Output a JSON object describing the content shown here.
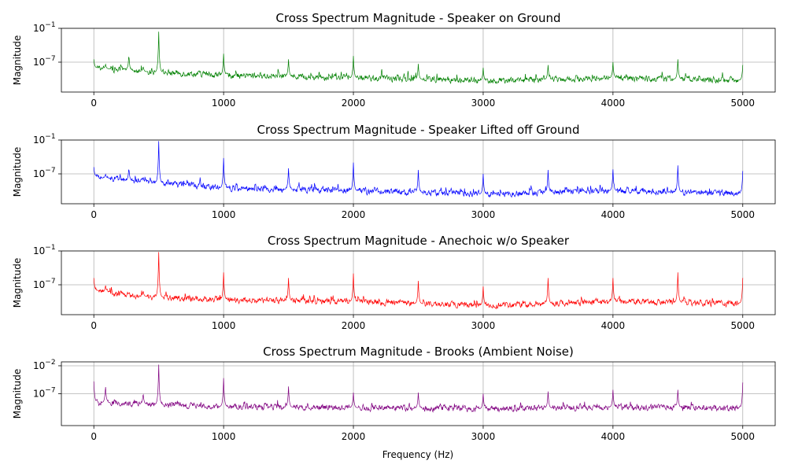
{
  "xlabel": "Frequency (Hz)",
  "xticks": [
    "0",
    "1000",
    "2000",
    "3000",
    "4000",
    "5000"
  ],
  "chart_data": [
    {
      "type": "line",
      "title": "Cross Spectrum Magnitude - Speaker on Ground",
      "ylabel": "Magnitude",
      "yscale": "log",
      "xlim": [
        -250,
        5250
      ],
      "ylim_log10": [
        -12.3,
        -1
      ],
      "yticks": [
        {
          "pre": "10",
          "exp": "−1",
          "value": -1
        },
        {
          "pre": "10",
          "exp": "−7",
          "value": -7
        }
      ],
      "grid": true,
      "color": "#008000",
      "noise_floor_log10": [
        [
          0,
          -8.0
        ],
        [
          300,
          -8.6
        ],
        [
          1000,
          -9.3
        ],
        [
          2000,
          -9.8
        ],
        [
          3000,
          -10.3
        ],
        [
          4000,
          -9.8
        ],
        [
          5000,
          -10.2
        ]
      ],
      "peaks": [
        {
          "x": 0,
          "y_log10": -6.5
        },
        {
          "x": 90,
          "y_log10": -7.3
        },
        {
          "x": 270,
          "y_log10": -5.5
        },
        {
          "x": 380,
          "y_log10": -7.7
        },
        {
          "x": 500,
          "y_log10": -1.6
        },
        {
          "x": 1000,
          "y_log10": -5.5
        },
        {
          "x": 1500,
          "y_log10": -6.5
        },
        {
          "x": 2000,
          "y_log10": -5.9
        },
        {
          "x": 2500,
          "y_log10": -7.3
        },
        {
          "x": 3000,
          "y_log10": -8.0
        },
        {
          "x": 3500,
          "y_log10": -7.5
        },
        {
          "x": 4000,
          "y_log10": -7.0
        },
        {
          "x": 4500,
          "y_log10": -6.5
        },
        {
          "x": 5000,
          "y_log10": -7.5
        }
      ]
    },
    {
      "type": "line",
      "title": "Cross Spectrum Magnitude - Speaker Lifted off Ground",
      "ylabel": "Magnitude",
      "yscale": "log",
      "xlim": [
        -250,
        5250
      ],
      "ylim_log10": [
        -12.3,
        -1
      ],
      "yticks": [
        {
          "pre": "10",
          "exp": "−1",
          "value": -1
        },
        {
          "pre": "10",
          "exp": "−7",
          "value": -7
        }
      ],
      "grid": true,
      "color": "#0000ff",
      "noise_floor_log10": [
        [
          0,
          -7.5
        ],
        [
          300,
          -8.3
        ],
        [
          1000,
          -9.5
        ],
        [
          2000,
          -10.0
        ],
        [
          3000,
          -10.6
        ],
        [
          4000,
          -10.0
        ],
        [
          5000,
          -10.5
        ]
      ],
      "peaks": [
        {
          "x": 0,
          "y_log10": -5.8
        },
        {
          "x": 90,
          "y_log10": -7.0
        },
        {
          "x": 270,
          "y_log10": -5.8
        },
        {
          "x": 380,
          "y_log10": -7.5
        },
        {
          "x": 500,
          "y_log10": -1.2
        },
        {
          "x": 1000,
          "y_log10": -4.2
        },
        {
          "x": 1500,
          "y_log10": -6.0
        },
        {
          "x": 2000,
          "y_log10": -5.0
        },
        {
          "x": 2500,
          "y_log10": -6.3
        },
        {
          "x": 3000,
          "y_log10": -7.0
        },
        {
          "x": 3500,
          "y_log10": -6.3
        },
        {
          "x": 4000,
          "y_log10": -6.2
        },
        {
          "x": 4500,
          "y_log10": -5.5
        },
        {
          "x": 5000,
          "y_log10": -6.5
        }
      ]
    },
    {
      "type": "line",
      "title": "Cross Spectrum Magnitude - Anechoic w/o Speaker",
      "ylabel": "Magnitude",
      "yscale": "log",
      "xlim": [
        -250,
        5250
      ],
      "ylim_log10": [
        -12.3,
        -1
      ],
      "yticks": [
        {
          "pre": "10",
          "exp": "−1",
          "value": -1
        },
        {
          "pre": "10",
          "exp": "−7",
          "value": -7
        }
      ],
      "grid": true,
      "color": "#ff0000",
      "noise_floor_log10": [
        [
          0,
          -8.0
        ],
        [
          300,
          -9.0
        ],
        [
          1000,
          -9.7
        ],
        [
          2000,
          -10.0
        ],
        [
          3000,
          -10.7
        ],
        [
          4000,
          -10.0
        ],
        [
          5000,
          -10.3
        ]
      ],
      "peaks": [
        {
          "x": 0,
          "y_log10": -5.8
        },
        {
          "x": 90,
          "y_log10": -7.0
        },
        {
          "x": 380,
          "y_log10": -8.0
        },
        {
          "x": 500,
          "y_log10": -1.2
        },
        {
          "x": 1000,
          "y_log10": -4.8
        },
        {
          "x": 1500,
          "y_log10": -5.8
        },
        {
          "x": 2000,
          "y_log10": -5.0
        },
        {
          "x": 2500,
          "y_log10": -6.3
        },
        {
          "x": 3000,
          "y_log10": -7.3
        },
        {
          "x": 3500,
          "y_log10": -5.8
        },
        {
          "x": 4000,
          "y_log10": -5.8
        },
        {
          "x": 4500,
          "y_log10": -4.8
        },
        {
          "x": 5000,
          "y_log10": -5.8
        }
      ]
    },
    {
      "type": "line",
      "title": "Cross Spectrum Magnitude - Brooks (Ambient Noise)",
      "ylabel": "Magnitude",
      "yscale": "log",
      "xlim": [
        -250,
        5250
      ],
      "ylim_log10": [
        -12.7,
        -1.3
      ],
      "yticks": [
        {
          "pre": "10",
          "exp": "−2",
          "value": -2
        },
        {
          "pre": "10",
          "exp": "−7",
          "value": -7
        }
      ],
      "grid": true,
      "color": "#800080",
      "noise_floor_log10": [
        [
          0,
          -8.5
        ],
        [
          300,
          -8.8
        ],
        [
          1000,
          -9.3
        ],
        [
          2000,
          -9.5
        ],
        [
          3000,
          -9.7
        ],
        [
          4000,
          -9.4
        ],
        [
          5000,
          -9.6
        ]
      ],
      "peaks": [
        {
          "x": 0,
          "y_log10": -4.8
        },
        {
          "x": 90,
          "y_log10": -5.5
        },
        {
          "x": 380,
          "y_log10": -6.8
        },
        {
          "x": 500,
          "y_log10": -1.8
        },
        {
          "x": 1000,
          "y_log10": -4.2
        },
        {
          "x": 1500,
          "y_log10": -5.7
        },
        {
          "x": 2000,
          "y_log10": -6.8
        },
        {
          "x": 2500,
          "y_log10": -6.8
        },
        {
          "x": 3000,
          "y_log10": -7.0
        },
        {
          "x": 3500,
          "y_log10": -6.6
        },
        {
          "x": 4000,
          "y_log10": -6.3
        },
        {
          "x": 4500,
          "y_log10": -6.3
        },
        {
          "x": 5000,
          "y_log10": -5.0
        }
      ]
    }
  ]
}
